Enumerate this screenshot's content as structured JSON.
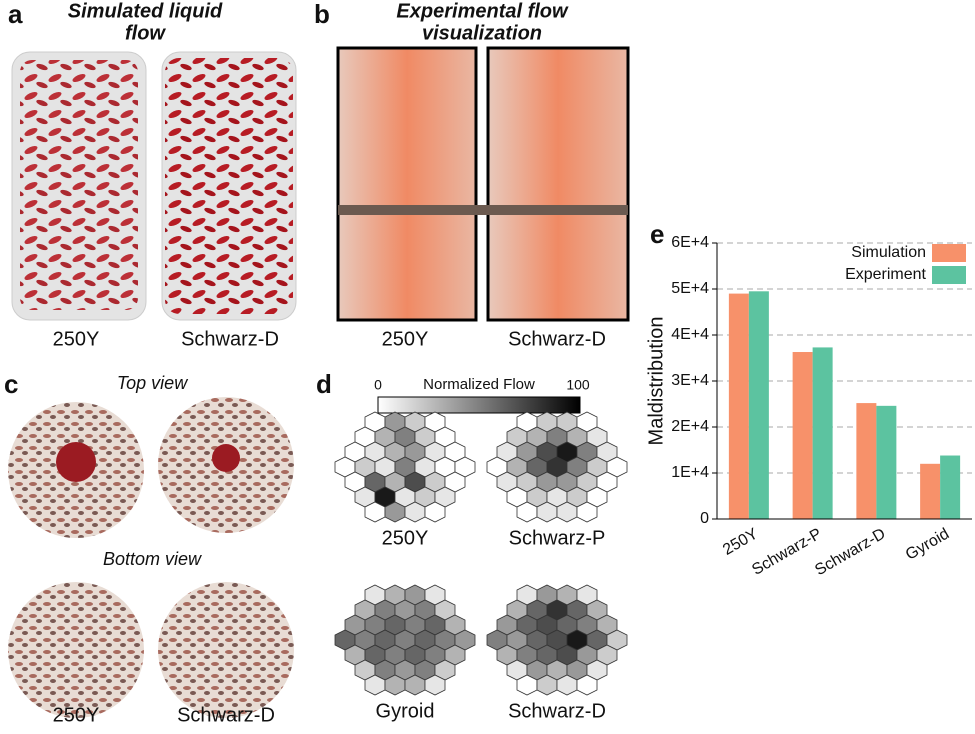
{
  "panels": {
    "a": {
      "letter": "a",
      "title": [
        "Simulated liquid",
        "flow"
      ],
      "captions": [
        "250Y",
        "Schwarz-D"
      ]
    },
    "b": {
      "letter": "b",
      "title": [
        "Experimental flow",
        "visualization"
      ],
      "captions": [
        "250Y",
        "Schwarz-D"
      ]
    },
    "c": {
      "letter": "c",
      "top": "Top view",
      "bottom": "Bottom view",
      "captions": [
        "250Y",
        "Schwarz-D"
      ]
    },
    "d": {
      "letter": "d",
      "colorbar": {
        "label": "Normalized Flow",
        "min": 0,
        "max": 100
      },
      "maps": [
        {
          "name": "250Y",
          "values": [
            0,
            40,
            20,
            0,
            0,
            30,
            50,
            20,
            0,
            0,
            10,
            30,
            40,
            10,
            0,
            0,
            20,
            10,
            50,
            10,
            0,
            0,
            0,
            60,
            30,
            70,
            20,
            0,
            10,
            90,
            10,
            20,
            10,
            0,
            40,
            10,
            0
          ]
        },
        {
          "name": "Schwarz-P",
          "values": [
            0,
            20,
            20,
            0,
            20,
            30,
            50,
            30,
            10,
            10,
            40,
            70,
            90,
            50,
            10,
            0,
            30,
            60,
            80,
            50,
            20,
            0,
            10,
            20,
            40,
            40,
            20,
            0,
            0,
            20,
            10,
            20,
            0,
            0,
            10,
            10,
            0
          ]
        },
        {
          "name": "Gyroid",
          "values": [
            10,
            30,
            40,
            10,
            30,
            50,
            40,
            50,
            20,
            40,
            50,
            60,
            50,
            60,
            30,
            60,
            50,
            60,
            50,
            60,
            50,
            40,
            30,
            60,
            50,
            60,
            50,
            30,
            20,
            50,
            40,
            50,
            20,
            10,
            30,
            30,
            10
          ]
        },
        {
          "name": "Schwarz-D",
          "values": [
            10,
            40,
            30,
            10,
            30,
            60,
            80,
            60,
            30,
            40,
            60,
            70,
            60,
            50,
            30,
            50,
            40,
            60,
            70,
            90,
            60,
            20,
            30,
            50,
            60,
            70,
            40,
            20,
            10,
            40,
            30,
            40,
            10,
            0,
            20,
            10,
            0
          ]
        }
      ]
    },
    "e": {
      "letter": "e"
    }
  },
  "chart_data": {
    "type": "bar",
    "y_label": "Maldistribution",
    "categories": [
      "250Y",
      "Schwarz-P",
      "Schwarz-D",
      "Gyroid"
    ],
    "series": [
      {
        "name": "Simulation",
        "color": "#f7916a",
        "values": [
          49000,
          36300,
          25200,
          12000
        ]
      },
      {
        "name": "Experiment",
        "color": "#5cc3a0",
        "values": [
          49500,
          37300,
          24600,
          13800
        ]
      }
    ],
    "ylim": [
      0,
      60000
    ],
    "yticks": [
      0,
      {
        "value": 10000,
        "label": "1E+4"
      },
      {
        "value": 20000,
        "label": "2E+4"
      },
      {
        "value": 30000,
        "label": "3E+4"
      },
      {
        "value": 40000,
        "label": "4E+4"
      },
      {
        "value": 50000,
        "label": "5E+4"
      },
      {
        "value": 60000,
        "label": "6E+4"
      }
    ],
    "grid": true,
    "legend": "top-right"
  }
}
